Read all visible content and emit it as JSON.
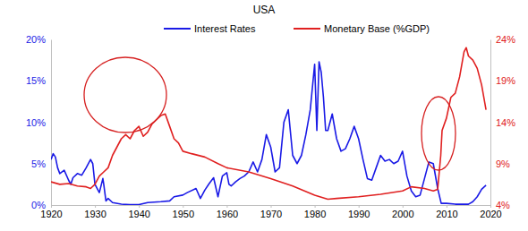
{
  "chart_data": {
    "type": "line",
    "title": "USA",
    "legend": "top",
    "grid": false,
    "xlim": [
      1920,
      2020
    ],
    "xticks": [
      1920,
      1930,
      1940,
      1950,
      1960,
      1970,
      1980,
      1990,
      2000,
      2010,
      2020
    ],
    "ylim": [
      0,
      20
    ],
    "yticks": [
      {
        "value": 0,
        "label": "0%"
      },
      {
        "value": 5,
        "label": "5%"
      },
      {
        "value": 10,
        "label": "10%"
      },
      {
        "value": 15,
        "label": "15%"
      },
      {
        "value": 20,
        "label": "20%"
      }
    ],
    "y2lim": [
      4,
      24
    ],
    "y2ticks": [
      {
        "value": 4,
        "label": "4%"
      },
      {
        "value": 9,
        "label": "9%"
      },
      {
        "value": 14,
        "label": "14%"
      },
      {
        "value": 19,
        "label": "19%"
      },
      {
        "value": 24,
        "label": "24%"
      }
    ],
    "series": [
      {
        "name": "Interest Rates",
        "color": "#1a1ae6",
        "axis": "y",
        "x": [
          1920,
          1920.5,
          1921,
          1921.5,
          1922,
          1923,
          1924,
          1924.5,
          1925,
          1926,
          1927,
          1928,
          1929,
          1929.5,
          1930,
          1931,
          1931.8,
          1932,
          1932.5,
          1933,
          1934,
          1936,
          1938,
          1940,
          1942,
          1945,
          1947,
          1948,
          1950,
          1951,
          1953,
          1954,
          1955,
          1956,
          1957,
          1958,
          1959,
          1960,
          1960.5,
          1961,
          1962,
          1963,
          1964,
          1965,
          1966,
          1967,
          1968,
          1969,
          1970,
          1971,
          1972,
          1973,
          1974,
          1975,
          1976,
          1977,
          1978,
          1979,
          1980,
          1980.5,
          1981,
          1981.5,
          1982,
          1982.5,
          1983,
          1984,
          1985,
          1986,
          1987,
          1988,
          1989,
          1990,
          1991,
          1992,
          1993,
          1994,
          1995,
          1996,
          1997,
          1998,
          1999,
          2000,
          2001,
          2002,
          2003,
          2004,
          2005,
          2006,
          2007,
          2008,
          2008.8,
          2010,
          2012,
          2015,
          2016,
          2017,
          2018,
          2019
        ],
        "values": [
          5.5,
          6.2,
          5.8,
          4.5,
          3.8,
          4.2,
          3.0,
          2.5,
          3.3,
          3.8,
          3.6,
          4.5,
          5.5,
          5.0,
          2.5,
          1.5,
          3.2,
          2.5,
          0.5,
          0.8,
          0.3,
          0.1,
          0.05,
          0.05,
          0.3,
          0.4,
          0.5,
          1.0,
          1.2,
          1.5,
          2.0,
          0.8,
          1.8,
          2.6,
          3.3,
          1.0,
          3.5,
          3.9,
          2.5,
          2.3,
          2.8,
          3.2,
          3.5,
          4.0,
          5.2,
          4.0,
          5.5,
          8.5,
          7.0,
          4.0,
          4.5,
          10.0,
          11.5,
          6.0,
          5.0,
          6.0,
          8.5,
          11.5,
          17.0,
          9.0,
          17.3,
          16.0,
          13.0,
          9.0,
          9.0,
          11.0,
          8.0,
          6.5,
          6.8,
          8.0,
          9.5,
          8.0,
          5.5,
          3.2,
          3.0,
          4.5,
          6.0,
          5.3,
          5.5,
          5.0,
          5.3,
          6.5,
          3.5,
          1.7,
          1.0,
          1.2,
          3.2,
          5.2,
          5.0,
          2.0,
          0.2,
          0.2,
          0.1,
          0.1,
          0.4,
          1.0,
          1.9,
          2.4
        ]
      },
      {
        "name": "Monetary Base (%GDP)",
        "color": "#e02020",
        "axis": "y2",
        "x": [
          1920,
          1922,
          1924,
          1926,
          1928,
          1929,
          1930,
          1931,
          1932,
          1933,
          1934,
          1935,
          1936,
          1937,
          1938,
          1939,
          1940,
          1941,
          1942,
          1943,
          1944,
          1945,
          1946,
          1947,
          1948,
          1949,
          1950,
          1952,
          1955,
          1958,
          1960,
          1965,
          1970,
          1975,
          1980,
          1983,
          1985,
          1990,
          1995,
          2000,
          2002,
          2005,
          2007,
          2008,
          2008.7,
          2009,
          2010,
          2011,
          2012,
          2013,
          2014,
          2014.5,
          2015,
          2016,
          2017,
          2018,
          2019
        ],
        "values": [
          6.8,
          6.5,
          6.6,
          6.3,
          6.2,
          6.0,
          6.5,
          7.5,
          8.0,
          8.5,
          10.0,
          11.0,
          12.0,
          12.5,
          12.0,
          13.0,
          13.5,
          12.3,
          12.8,
          13.8,
          14.3,
          14.8,
          15.0,
          13.5,
          12.0,
          11.5,
          10.5,
          10.2,
          9.8,
          9.0,
          8.5,
          8.0,
          7.2,
          6.3,
          5.2,
          4.7,
          4.8,
          5.0,
          5.3,
          5.7,
          6.2,
          6.0,
          5.7,
          5.9,
          10.0,
          13.0,
          14.5,
          17.0,
          17.5,
          19.5,
          22.5,
          23.0,
          22.0,
          21.5,
          20.5,
          18.5,
          15.5
        ]
      }
    ]
  }
}
